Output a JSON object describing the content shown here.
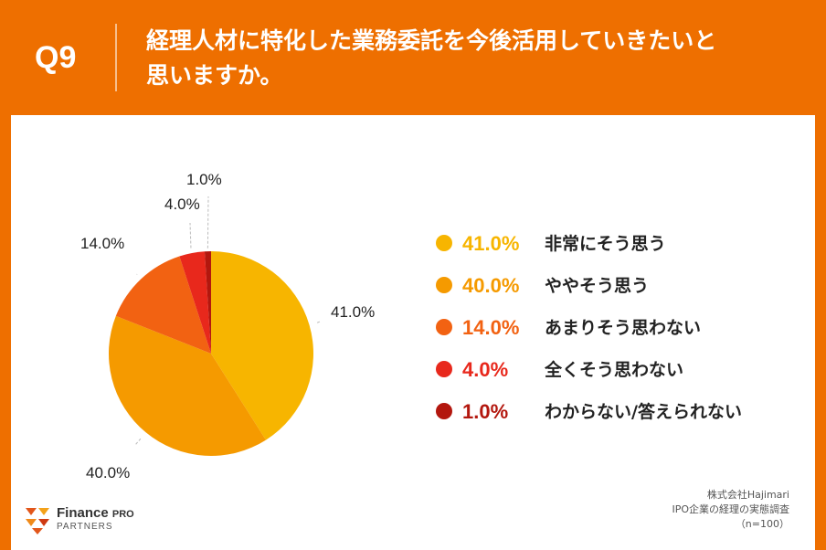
{
  "header": {
    "q_label": "Q9",
    "title_line1": "経理人材に特化した業務委託を今後活用していきたいと",
    "title_line2": "思いますか。"
  },
  "chart_data": {
    "type": "pie",
    "slices": [
      {
        "label": "非常にそう思う",
        "value": 41.0,
        "display": "41.0%",
        "color": "#f7b500"
      },
      {
        "label": "ややそう思う",
        "value": 40.0,
        "display": "40.0%",
        "color": "#f59a00"
      },
      {
        "label": "あまりそう思わない",
        "value": 14.0,
        "display": "14.0%",
        "color": "#f26212"
      },
      {
        "label": "全くそう思わない",
        "value": 4.0,
        "display": "4.0%",
        "color": "#e8281c"
      },
      {
        "label": "わからない/答えられない",
        "value": 1.0,
        "display": "1.0%",
        "color": "#b3170e"
      }
    ]
  },
  "source": {
    "line1": "株式会社Hajimari",
    "line2": "IPO企業の経理の実態調査",
    "line3": "（n=100）"
  },
  "logo": {
    "name_main": "Finance",
    "name_pro": "PRO",
    "name_sub": "PARTNERS"
  }
}
